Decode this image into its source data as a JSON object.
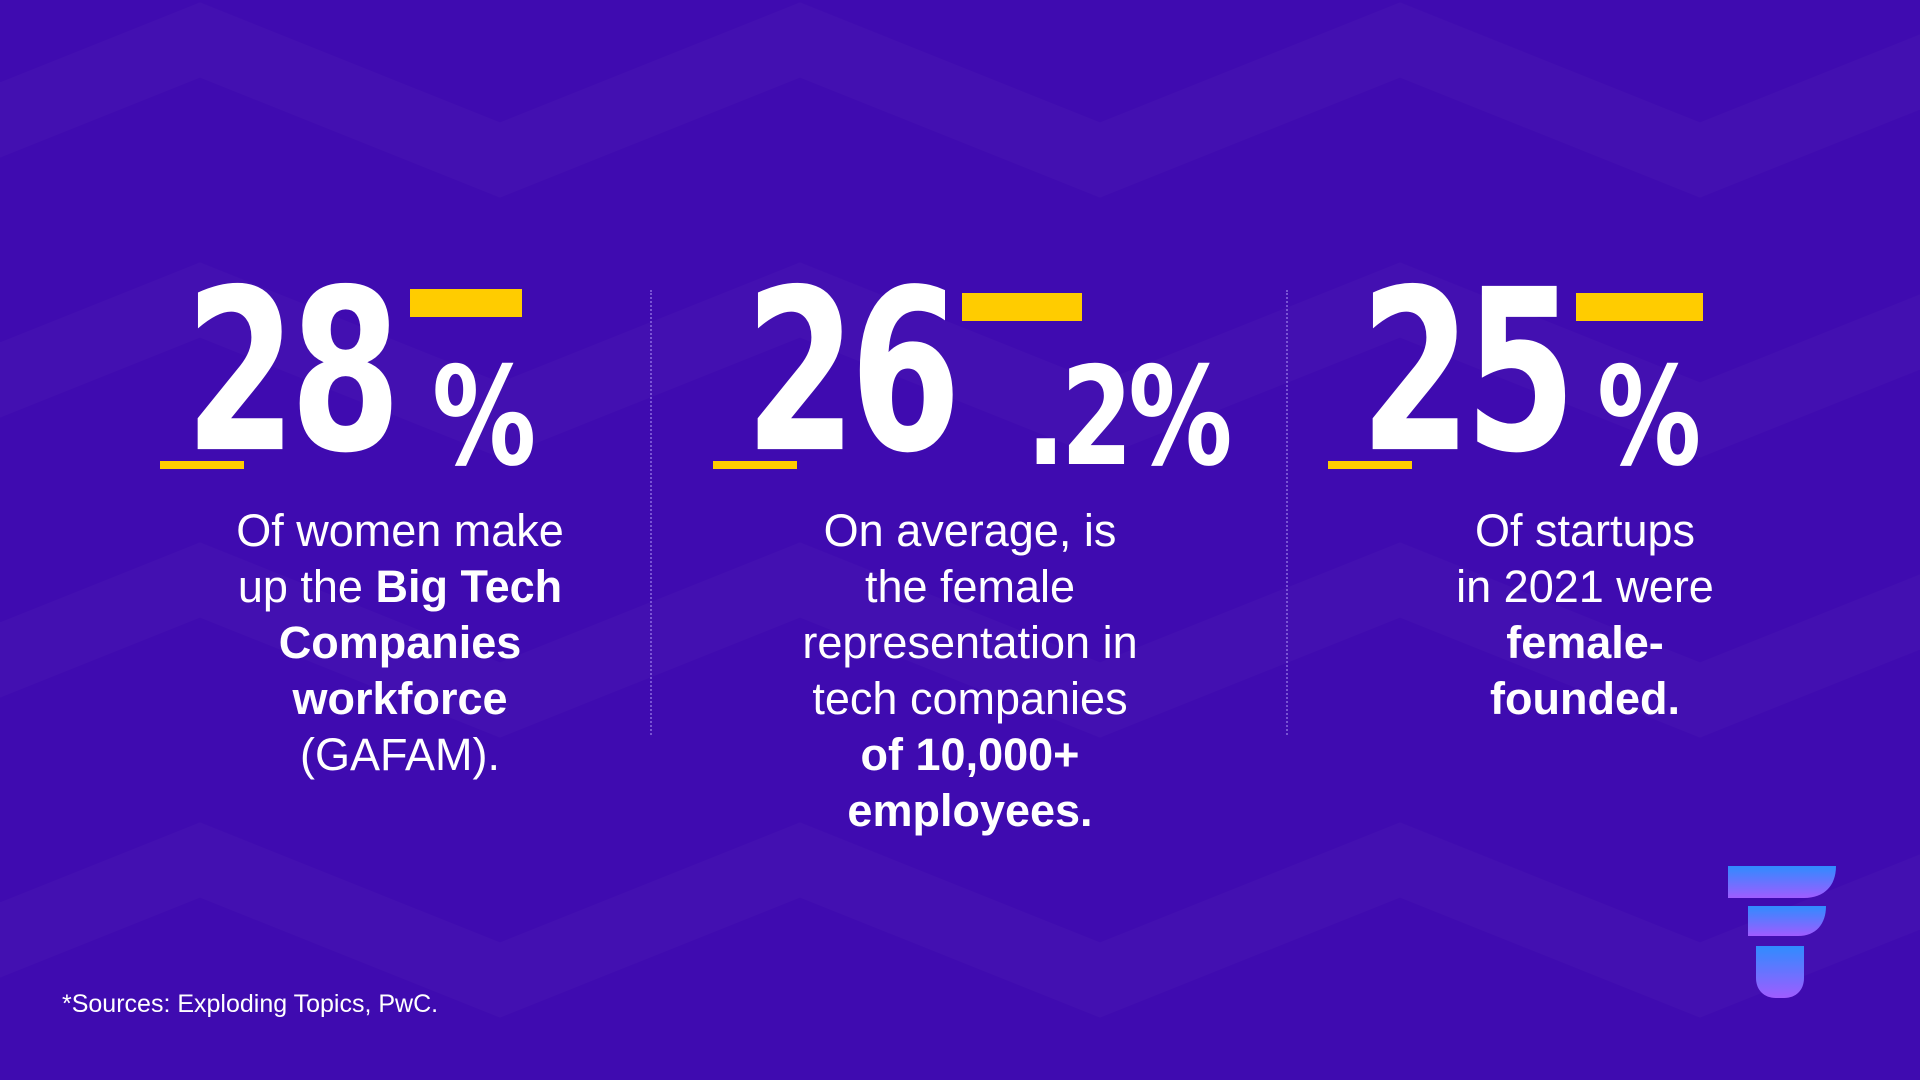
{
  "stats": [
    {
      "number": "28",
      "suffix": "%",
      "lines": [
        [
          {
            "text": "Of women make",
            "bold": false
          }
        ],
        [
          {
            "text": "up the ",
            "bold": false
          },
          {
            "text": "Big Tech",
            "bold": true
          }
        ],
        [
          {
            "text": "Companies",
            "bold": true
          }
        ],
        [
          {
            "text": "workforce",
            "bold": true
          }
        ],
        [
          {
            "text": "(GAFAM).",
            "bold": false
          }
        ]
      ]
    },
    {
      "number": "26",
      "suffix": ".2%",
      "lines": [
        [
          {
            "text": "On average, is",
            "bold": false
          }
        ],
        [
          {
            "text": "the female",
            "bold": false
          }
        ],
        [
          {
            "text": "representation in",
            "bold": false
          }
        ],
        [
          {
            "text": "tech companies",
            "bold": false
          }
        ],
        [
          {
            "text": "of 10,000+",
            "bold": true
          }
        ],
        [
          {
            "text": "employees.",
            "bold": true
          }
        ]
      ]
    },
    {
      "number": "25",
      "suffix": "%",
      "lines": [
        [
          {
            "text": "Of startups",
            "bold": false
          }
        ],
        [
          {
            "text": "in 2021 were",
            "bold": false
          }
        ],
        [
          {
            "text": "female-",
            "bold": true
          }
        ],
        [
          {
            "text": "founded.",
            "bold": true
          }
        ]
      ]
    }
  ],
  "sources": "*Sources: Exploding Topics, PwC.",
  "colors": {
    "background": "#3f0bb0",
    "accent": "#ffcc00",
    "text": "#ffffff",
    "logo_top": "#2f8cff",
    "logo_bottom": "#a05cff"
  },
  "logo_icon": "brand-f-logo-icon"
}
